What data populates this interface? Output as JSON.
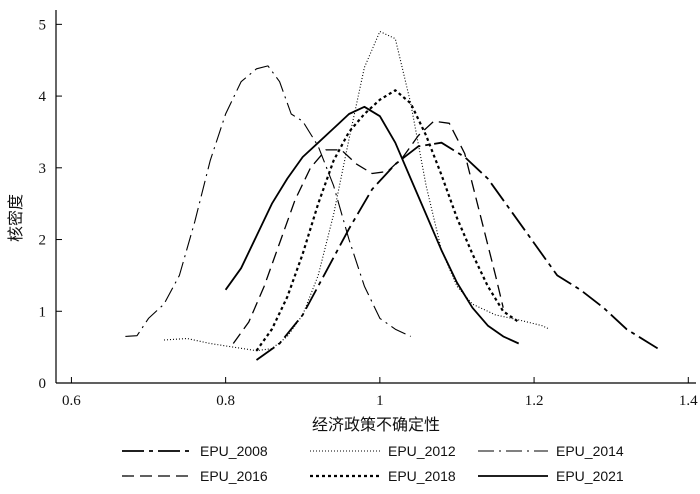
{
  "chart_data": {
    "type": "line",
    "xlabel": "经济政策不确定性",
    "ylabel": "核密度",
    "xlim": [
      0.58,
      1.41
    ],
    "ylim": [
      0,
      5.2
    ],
    "xticks": [
      {
        "value": 0.6,
        "label": "0.6"
      },
      {
        "value": 0.8,
        "label": "0.8"
      },
      {
        "value": 1.0,
        "label": "1"
      },
      {
        "value": 1.2,
        "label": "1.2"
      },
      {
        "value": 1.4,
        "label": "1.4"
      }
    ],
    "yticks": [
      {
        "value": 0,
        "label": "0"
      },
      {
        "value": 1,
        "label": "1"
      },
      {
        "value": 2,
        "label": "2"
      },
      {
        "value": 3,
        "label": "3"
      },
      {
        "value": 4,
        "label": "4"
      },
      {
        "value": 5,
        "label": "5"
      }
    ],
    "legend_position": "bottom",
    "series": [
      {
        "name": "EPU_2008",
        "dash": "22,5,4,5",
        "width": 1.8,
        "x": [
          0.84,
          0.87,
          0.9,
          0.93,
          0.96,
          0.99,
          1.02,
          1.05,
          1.08,
          1.11,
          1.14,
          1.17,
          1.2,
          1.23,
          1.26,
          1.29,
          1.32,
          1.35,
          1.365
        ],
        "y": [
          0.32,
          0.55,
          0.95,
          1.55,
          2.15,
          2.7,
          3.05,
          3.3,
          3.35,
          3.15,
          2.85,
          2.4,
          1.95,
          1.5,
          1.3,
          1.05,
          0.75,
          0.55,
          0.45
        ]
      },
      {
        "name": "EPU_2012",
        "dash": "1,2",
        "width": 1.1,
        "x": [
          0.72,
          0.75,
          0.78,
          0.81,
          0.84,
          0.86,
          0.88,
          0.9,
          0.92,
          0.94,
          0.96,
          0.98,
          1.0,
          1.02,
          1.04,
          1.06,
          1.08,
          1.1,
          1.12,
          1.15,
          1.18,
          1.21,
          1.22
        ],
        "y": [
          0.6,
          0.62,
          0.55,
          0.5,
          0.45,
          0.48,
          0.65,
          0.95,
          1.5,
          2.35,
          3.4,
          4.4,
          4.9,
          4.8,
          3.9,
          2.75,
          1.85,
          1.35,
          1.1,
          0.95,
          0.88,
          0.8,
          0.75
        ]
      },
      {
        "name": "EPU_2014",
        "dash": "16,5,2,5",
        "width": 1.1,
        "x": [
          0.67,
          0.685,
          0.7,
          0.72,
          0.74,
          0.76,
          0.78,
          0.8,
          0.82,
          0.84,
          0.855,
          0.87,
          0.885,
          0.9,
          0.92,
          0.94,
          0.96,
          0.98,
          1.0,
          1.02,
          1.04
        ],
        "y": [
          0.65,
          0.66,
          0.9,
          1.1,
          1.5,
          2.25,
          3.1,
          3.75,
          4.2,
          4.38,
          4.42,
          4.2,
          3.75,
          3.65,
          3.3,
          2.75,
          2.0,
          1.35,
          0.9,
          0.75,
          0.65
        ]
      },
      {
        "name": "EPU_2016",
        "dash": "12,6",
        "width": 1.3,
        "x": [
          0.81,
          0.83,
          0.85,
          0.87,
          0.89,
          0.91,
          0.93,
          0.95,
          0.97,
          0.99,
          1.01,
          1.03,
          1.05,
          1.07,
          1.09,
          1.11,
          1.13,
          1.15,
          1.16
        ],
        "y": [
          0.55,
          0.85,
          1.35,
          1.95,
          2.55,
          3.0,
          3.25,
          3.25,
          3.05,
          2.92,
          2.95,
          3.15,
          3.45,
          3.65,
          3.62,
          3.2,
          2.35,
          1.5,
          1.05
        ]
      },
      {
        "name": "EPU_2018",
        "dash": "3,3",
        "width": 2.2,
        "x": [
          0.84,
          0.86,
          0.88,
          0.9,
          0.92,
          0.94,
          0.96,
          0.98,
          1.0,
          1.02,
          1.04,
          1.06,
          1.08,
          1.1,
          1.12,
          1.14,
          1.16,
          1.18
        ],
        "y": [
          0.45,
          0.75,
          1.2,
          1.8,
          2.5,
          3.1,
          3.5,
          3.75,
          3.95,
          4.08,
          3.9,
          3.45,
          2.9,
          2.3,
          1.8,
          1.35,
          1.0,
          0.85
        ]
      },
      {
        "name": "EPU_2021",
        "dash": "",
        "width": 1.8,
        "x": [
          0.8,
          0.82,
          0.84,
          0.86,
          0.88,
          0.9,
          0.92,
          0.94,
          0.96,
          0.98,
          1.0,
          1.02,
          1.04,
          1.06,
          1.08,
          1.1,
          1.12,
          1.14,
          1.16,
          1.18
        ],
        "y": [
          1.3,
          1.6,
          2.05,
          2.5,
          2.85,
          3.15,
          3.35,
          3.55,
          3.75,
          3.85,
          3.72,
          3.35,
          2.85,
          2.35,
          1.85,
          1.4,
          1.05,
          0.8,
          0.65,
          0.55
        ]
      }
    ]
  }
}
